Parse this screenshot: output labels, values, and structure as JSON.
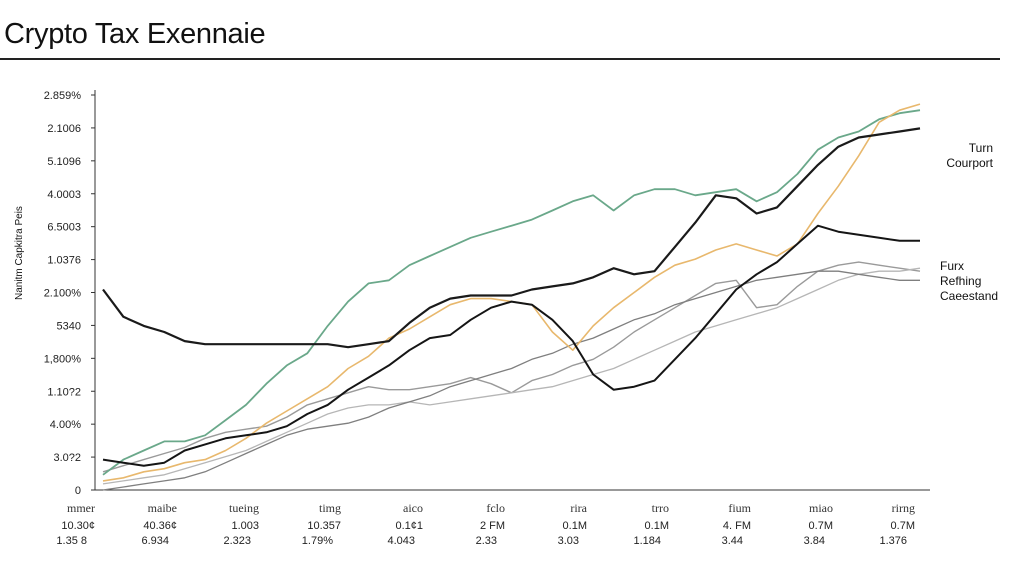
{
  "chart_data": {
    "type": "line",
    "title": "Crypto Tax Exennaie",
    "ylabel": "Nanitm Capkitra Peis",
    "xlabel": "",
    "ylim": [
      0,
      13
    ],
    "yticks": [
      "0",
      "3.0?2",
      "4.00%",
      "1.10?2",
      "1,800%",
      "5340",
      "2.100%",
      "1.0376",
      "6.5003",
      "4.0003",
      "5.1096",
      "2.1006",
      "2.859%"
    ],
    "x_categories": [
      "mmer",
      "maibe",
      "tueing",
      "timg",
      "aico",
      "fclo",
      "rira",
      "trro",
      "fium",
      "miao",
      "rirng"
    ],
    "x_row1": [
      "10.30¢",
      "40.36¢",
      "1.003",
      "10.357",
      "0.1¢1",
      "2 FM",
      "0.1M",
      "0.1M",
      "4. FM",
      "0.7M",
      "0.7M"
    ],
    "x_row2": [
      "1.35 8",
      "6.934",
      "2.323",
      "1.79%",
      "4.043",
      "2.33",
      "3.03",
      "1.184",
      "3.44",
      "3.84",
      "1.376"
    ],
    "legend_top": [
      "Turn",
      "Courport"
    ],
    "legend_mid": [
      "Furx",
      "Refhing",
      "Caeestand"
    ],
    "x": [
      0,
      1,
      2,
      3,
      4,
      5,
      6,
      7,
      8,
      9,
      10,
      11,
      12,
      13,
      14,
      15,
      16,
      17,
      18,
      19,
      20,
      21,
      22,
      23,
      24,
      25,
      26,
      27,
      28,
      29,
      30,
      31,
      32,
      33,
      34,
      35,
      36,
      37,
      38,
      39,
      40
    ],
    "series": [
      {
        "color": "#6aa88a",
        "width": 1.8,
        "values": [
          0.5,
          1.0,
          1.3,
          1.6,
          1.6,
          1.8,
          2.3,
          2.8,
          3.5,
          4.1,
          4.5,
          5.4,
          6.2,
          6.8,
          6.9,
          7.4,
          7.7,
          8.0,
          8.3,
          8.5,
          8.7,
          8.9,
          9.2,
          9.5,
          9.7,
          9.2,
          9.7,
          9.9,
          9.9,
          9.7,
          9.8,
          9.9,
          9.5,
          9.8,
          10.4,
          11.2,
          11.6,
          11.8,
          12.2,
          12.4,
          12.5
        ]
      },
      {
        "color": "#e8b86d",
        "width": 1.6,
        "values": [
          0.3,
          0.4,
          0.6,
          0.7,
          0.9,
          1.0,
          1.3,
          1.7,
          2.2,
          2.6,
          3.0,
          3.4,
          4.0,
          4.4,
          5.0,
          5.3,
          5.7,
          6.1,
          6.3,
          6.3,
          6.2,
          6.1,
          5.2,
          4.6,
          5.4,
          6.0,
          6.5,
          7.0,
          7.4,
          7.6,
          7.9,
          8.1,
          7.9,
          7.7,
          8.1,
          9.1,
          10.0,
          11.0,
          12.1,
          12.5,
          12.7
        ]
      },
      {
        "color": "#1a1a1a",
        "width": 2.2,
        "values": [
          6.6,
          5.7,
          5.4,
          5.2,
          4.9,
          4.8,
          4.8,
          4.8,
          4.8,
          4.8,
          4.8,
          4.8,
          4.7,
          4.8,
          4.9,
          5.5,
          6.0,
          6.3,
          6.4,
          6.4,
          6.4,
          6.6,
          6.7,
          6.8,
          7.0,
          7.3,
          7.1,
          7.2,
          8.0,
          8.8,
          9.7,
          9.6,
          9.1,
          9.3,
          10.0,
          10.7,
          11.3,
          11.6,
          11.7,
          11.8,
          11.9
        ]
      },
      {
        "color": "#151515",
        "width": 2.0,
        "values": [
          1.0,
          0.9,
          0.8,
          0.9,
          1.3,
          1.5,
          1.7,
          1.8,
          1.9,
          2.1,
          2.5,
          2.8,
          3.3,
          3.7,
          4.1,
          4.6,
          5.0,
          5.1,
          5.6,
          6.0,
          6.2,
          6.1,
          5.6,
          4.9,
          3.8,
          3.3,
          3.4,
          3.6,
          4.3,
          5.0,
          5.8,
          6.6,
          7.1,
          7.5,
          8.1,
          8.7,
          8.5,
          8.4,
          8.3,
          8.2,
          8.2
        ]
      }
    ],
    "series_light": [
      {
        "color": "#9a9a9a",
        "width": 1.4,
        "values": [
          0.6,
          0.8,
          1.0,
          1.2,
          1.4,
          1.7,
          1.9,
          2.0,
          2.1,
          2.4,
          2.8,
          3.0,
          3.2,
          3.4,
          3.3,
          3.3,
          3.4,
          3.5,
          3.7,
          3.5,
          3.2,
          3.6,
          3.8,
          4.1,
          4.3,
          4.7,
          5.2,
          5.6,
          6.0,
          6.4,
          6.8,
          6.9,
          6.0,
          6.1,
          6.7,
          7.2,
          7.4,
          7.5,
          7.4,
          7.3,
          7.2
        ]
      },
      {
        "color": "#b6b6b6",
        "width": 1.3,
        "values": [
          0.2,
          0.3,
          0.4,
          0.5,
          0.7,
          0.9,
          1.1,
          1.3,
          1.6,
          1.9,
          2.2,
          2.5,
          2.7,
          2.8,
          2.8,
          2.9,
          2.8,
          2.9,
          3.0,
          3.1,
          3.2,
          3.3,
          3.4,
          3.6,
          3.8,
          4.0,
          4.3,
          4.6,
          4.9,
          5.2,
          5.4,
          5.6,
          5.8,
          6.0,
          6.3,
          6.6,
          6.9,
          7.1,
          7.2,
          7.2,
          7.3
        ]
      },
      {
        "color": "#7f7f7f",
        "width": 1.3,
        "values": [
          0.0,
          0.1,
          0.2,
          0.3,
          0.4,
          0.6,
          0.9,
          1.2,
          1.5,
          1.8,
          2.0,
          2.1,
          2.2,
          2.4,
          2.7,
          2.9,
          3.1,
          3.4,
          3.6,
          3.8,
          4.0,
          4.3,
          4.5,
          4.8,
          5.0,
          5.3,
          5.6,
          5.8,
          6.1,
          6.3,
          6.5,
          6.7,
          6.9,
          7.0,
          7.1,
          7.2,
          7.2,
          7.1,
          7.0,
          6.9,
          6.9
        ]
      }
    ]
  }
}
